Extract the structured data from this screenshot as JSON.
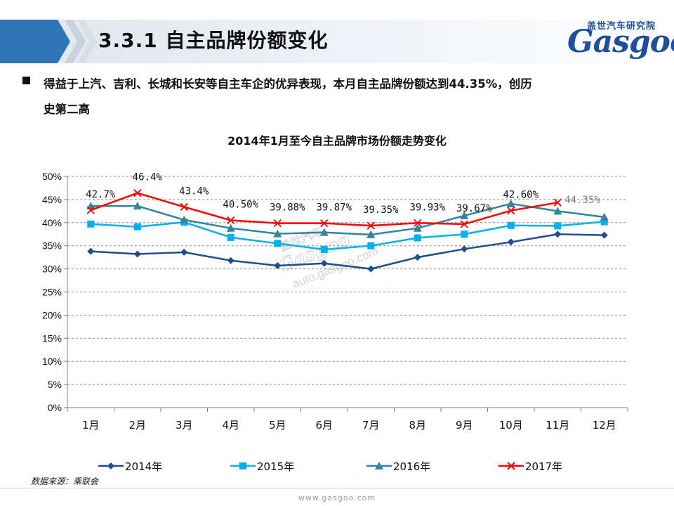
{
  "header": {
    "title": "3.3.1 自主品牌份额变化",
    "brand_cn": "盖世汽车研究院",
    "brand_logo": "Gasgoo"
  },
  "intro": {
    "line1": "得益于上汽、吉利、长城和长安等自主车企的优异表现，本月自主品牌份额达到44.35%，创历",
    "line2": "史第二高"
  },
  "source": "数据来源：乘联会",
  "footer_url": "www.gasgoo.com",
  "watermark": {
    "brand": "盖世汽车",
    "logo": "Gasgoo",
    "url": "auto.gasgoo.com"
  },
  "colors": {
    "2014": "#1f4e8c",
    "2015": "#00b0f0",
    "2016": "#31859c",
    "2017": "#ff0000",
    "header_bar": "#2e75b6",
    "brand": "#1f4e9c"
  },
  "chart_data": {
    "type": "line",
    "title": "2014年1月至今自主品牌市场份额走势变化",
    "xlabel": "",
    "ylabel": "",
    "categories": [
      "1月",
      "2月",
      "3月",
      "4月",
      "5月",
      "6月",
      "7月",
      "8月",
      "9月",
      "10月",
      "11月",
      "12月"
    ],
    "y_ticks": [
      "0%",
      "5%",
      "10%",
      "15%",
      "20%",
      "25%",
      "30%",
      "35%",
      "40%",
      "45%",
      "50%"
    ],
    "ylim": [
      0,
      50
    ],
    "grid": "horizontal dashed",
    "legend_position": "bottom",
    "series": [
      {
        "name": "2014年",
        "marker": "diamond",
        "color": "#1f4e8c",
        "values": [
          33.8,
          33.2,
          33.6,
          31.8,
          30.7,
          31.2,
          30.0,
          32.5,
          34.3,
          35.8,
          37.5,
          37.3
        ]
      },
      {
        "name": "2015年",
        "marker": "square",
        "color": "#00b0f0",
        "values": [
          39.7,
          39.1,
          40.1,
          36.8,
          35.5,
          34.2,
          35.0,
          36.7,
          37.5,
          39.4,
          39.3,
          40.2
        ]
      },
      {
        "name": "2016年",
        "marker": "triangle",
        "color": "#31859c",
        "values": [
          43.6,
          43.6,
          40.6,
          38.8,
          37.6,
          37.9,
          37.4,
          38.8,
          41.5,
          44.1,
          42.5,
          41.2
        ]
      },
      {
        "name": "2017年",
        "marker": "x",
        "color": "#ff0000",
        "values": [
          42.7,
          46.4,
          43.4,
          40.5,
          39.88,
          39.87,
          39.35,
          39.93,
          39.67,
          42.6,
          44.35,
          null
        ],
        "labels": [
          "42.7%",
          "46.4%",
          "43.4%",
          "40.50%",
          "39.88%",
          "39.87%",
          "39.35%",
          "39.93%",
          "39.67%",
          "42.60%",
          "44.35%",
          ""
        ]
      }
    ]
  }
}
